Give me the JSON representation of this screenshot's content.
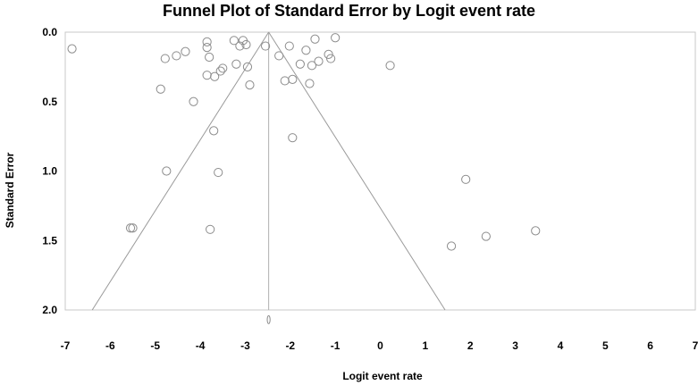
{
  "chart_data": {
    "type": "scatter",
    "title": "Funnel Plot of Standard Error by Logit event rate",
    "xlabel": "Logit event rate",
    "ylabel": "Standard Error",
    "xlim": [
      -7,
      7
    ],
    "ylim": [
      0,
      2
    ],
    "y_inverted": true,
    "x_ticks": [
      "-7",
      "-6",
      "-5",
      "-4",
      "-3",
      "-2",
      "-1",
      "0",
      "1",
      "2",
      "3",
      "4",
      "5",
      "6",
      "7"
    ],
    "y_ticks": [
      "0.0",
      "0.5",
      "1.0",
      "1.5",
      "2.0"
    ],
    "grid": false,
    "funnel_center": -2.48,
    "funnel_bounds_at_se2": [
      -6.4,
      1.44
    ],
    "points": [
      {
        "x": -6.85,
        "y": 0.12
      },
      {
        "x": -4.78,
        "y": 0.19
      },
      {
        "x": -4.53,
        "y": 0.17
      },
      {
        "x": -4.33,
        "y": 0.14
      },
      {
        "x": -4.88,
        "y": 0.41
      },
      {
        "x": -4.15,
        "y": 0.5
      },
      {
        "x": -3.85,
        "y": 0.07
      },
      {
        "x": -3.85,
        "y": 0.11
      },
      {
        "x": -3.8,
        "y": 0.18
      },
      {
        "x": -3.85,
        "y": 0.31
      },
      {
        "x": -3.68,
        "y": 0.32
      },
      {
        "x": -3.55,
        "y": 0.28
      },
      {
        "x": -3.5,
        "y": 0.26
      },
      {
        "x": -3.25,
        "y": 0.06
      },
      {
        "x": -3.2,
        "y": 0.23
      },
      {
        "x": -3.12,
        "y": 0.1
      },
      {
        "x": -3.05,
        "y": 0.06
      },
      {
        "x": -2.98,
        "y": 0.09
      },
      {
        "x": -2.95,
        "y": 0.25
      },
      {
        "x": -2.9,
        "y": 0.38
      },
      {
        "x": -2.55,
        "y": 0.1
      },
      {
        "x": -2.25,
        "y": 0.17
      },
      {
        "x": -2.12,
        "y": 0.35
      },
      {
        "x": -2.02,
        "y": 0.1
      },
      {
        "x": -1.95,
        "y": 0.34
      },
      {
        "x": -1.95,
        "y": 0.76
      },
      {
        "x": -1.78,
        "y": 0.23
      },
      {
        "x": -1.65,
        "y": 0.13
      },
      {
        "x": -1.57,
        "y": 0.37
      },
      {
        "x": -1.52,
        "y": 0.24
      },
      {
        "x": -1.45,
        "y": 0.05
      },
      {
        "x": -1.37,
        "y": 0.21
      },
      {
        "x": -1.15,
        "y": 0.16
      },
      {
        "x": -1.1,
        "y": 0.19
      },
      {
        "x": -1.0,
        "y": 0.04
      },
      {
        "x": 0.22,
        "y": 0.24
      },
      {
        "x": -3.7,
        "y": 0.71
      },
      {
        "x": -4.75,
        "y": 1.0
      },
      {
        "x": -3.6,
        "y": 1.01
      },
      {
        "x": -5.5,
        "y": 1.41
      },
      {
        "x": -5.55,
        "y": 1.41
      },
      {
        "x": -3.78,
        "y": 1.42
      },
      {
        "x": 1.58,
        "y": 1.54
      },
      {
        "x": 1.9,
        "y": 1.06
      },
      {
        "x": 2.35,
        "y": 1.47
      },
      {
        "x": 3.45,
        "y": 1.43
      }
    ],
    "combined_marker": {
      "x": -2.48,
      "y": 2.07
    }
  }
}
